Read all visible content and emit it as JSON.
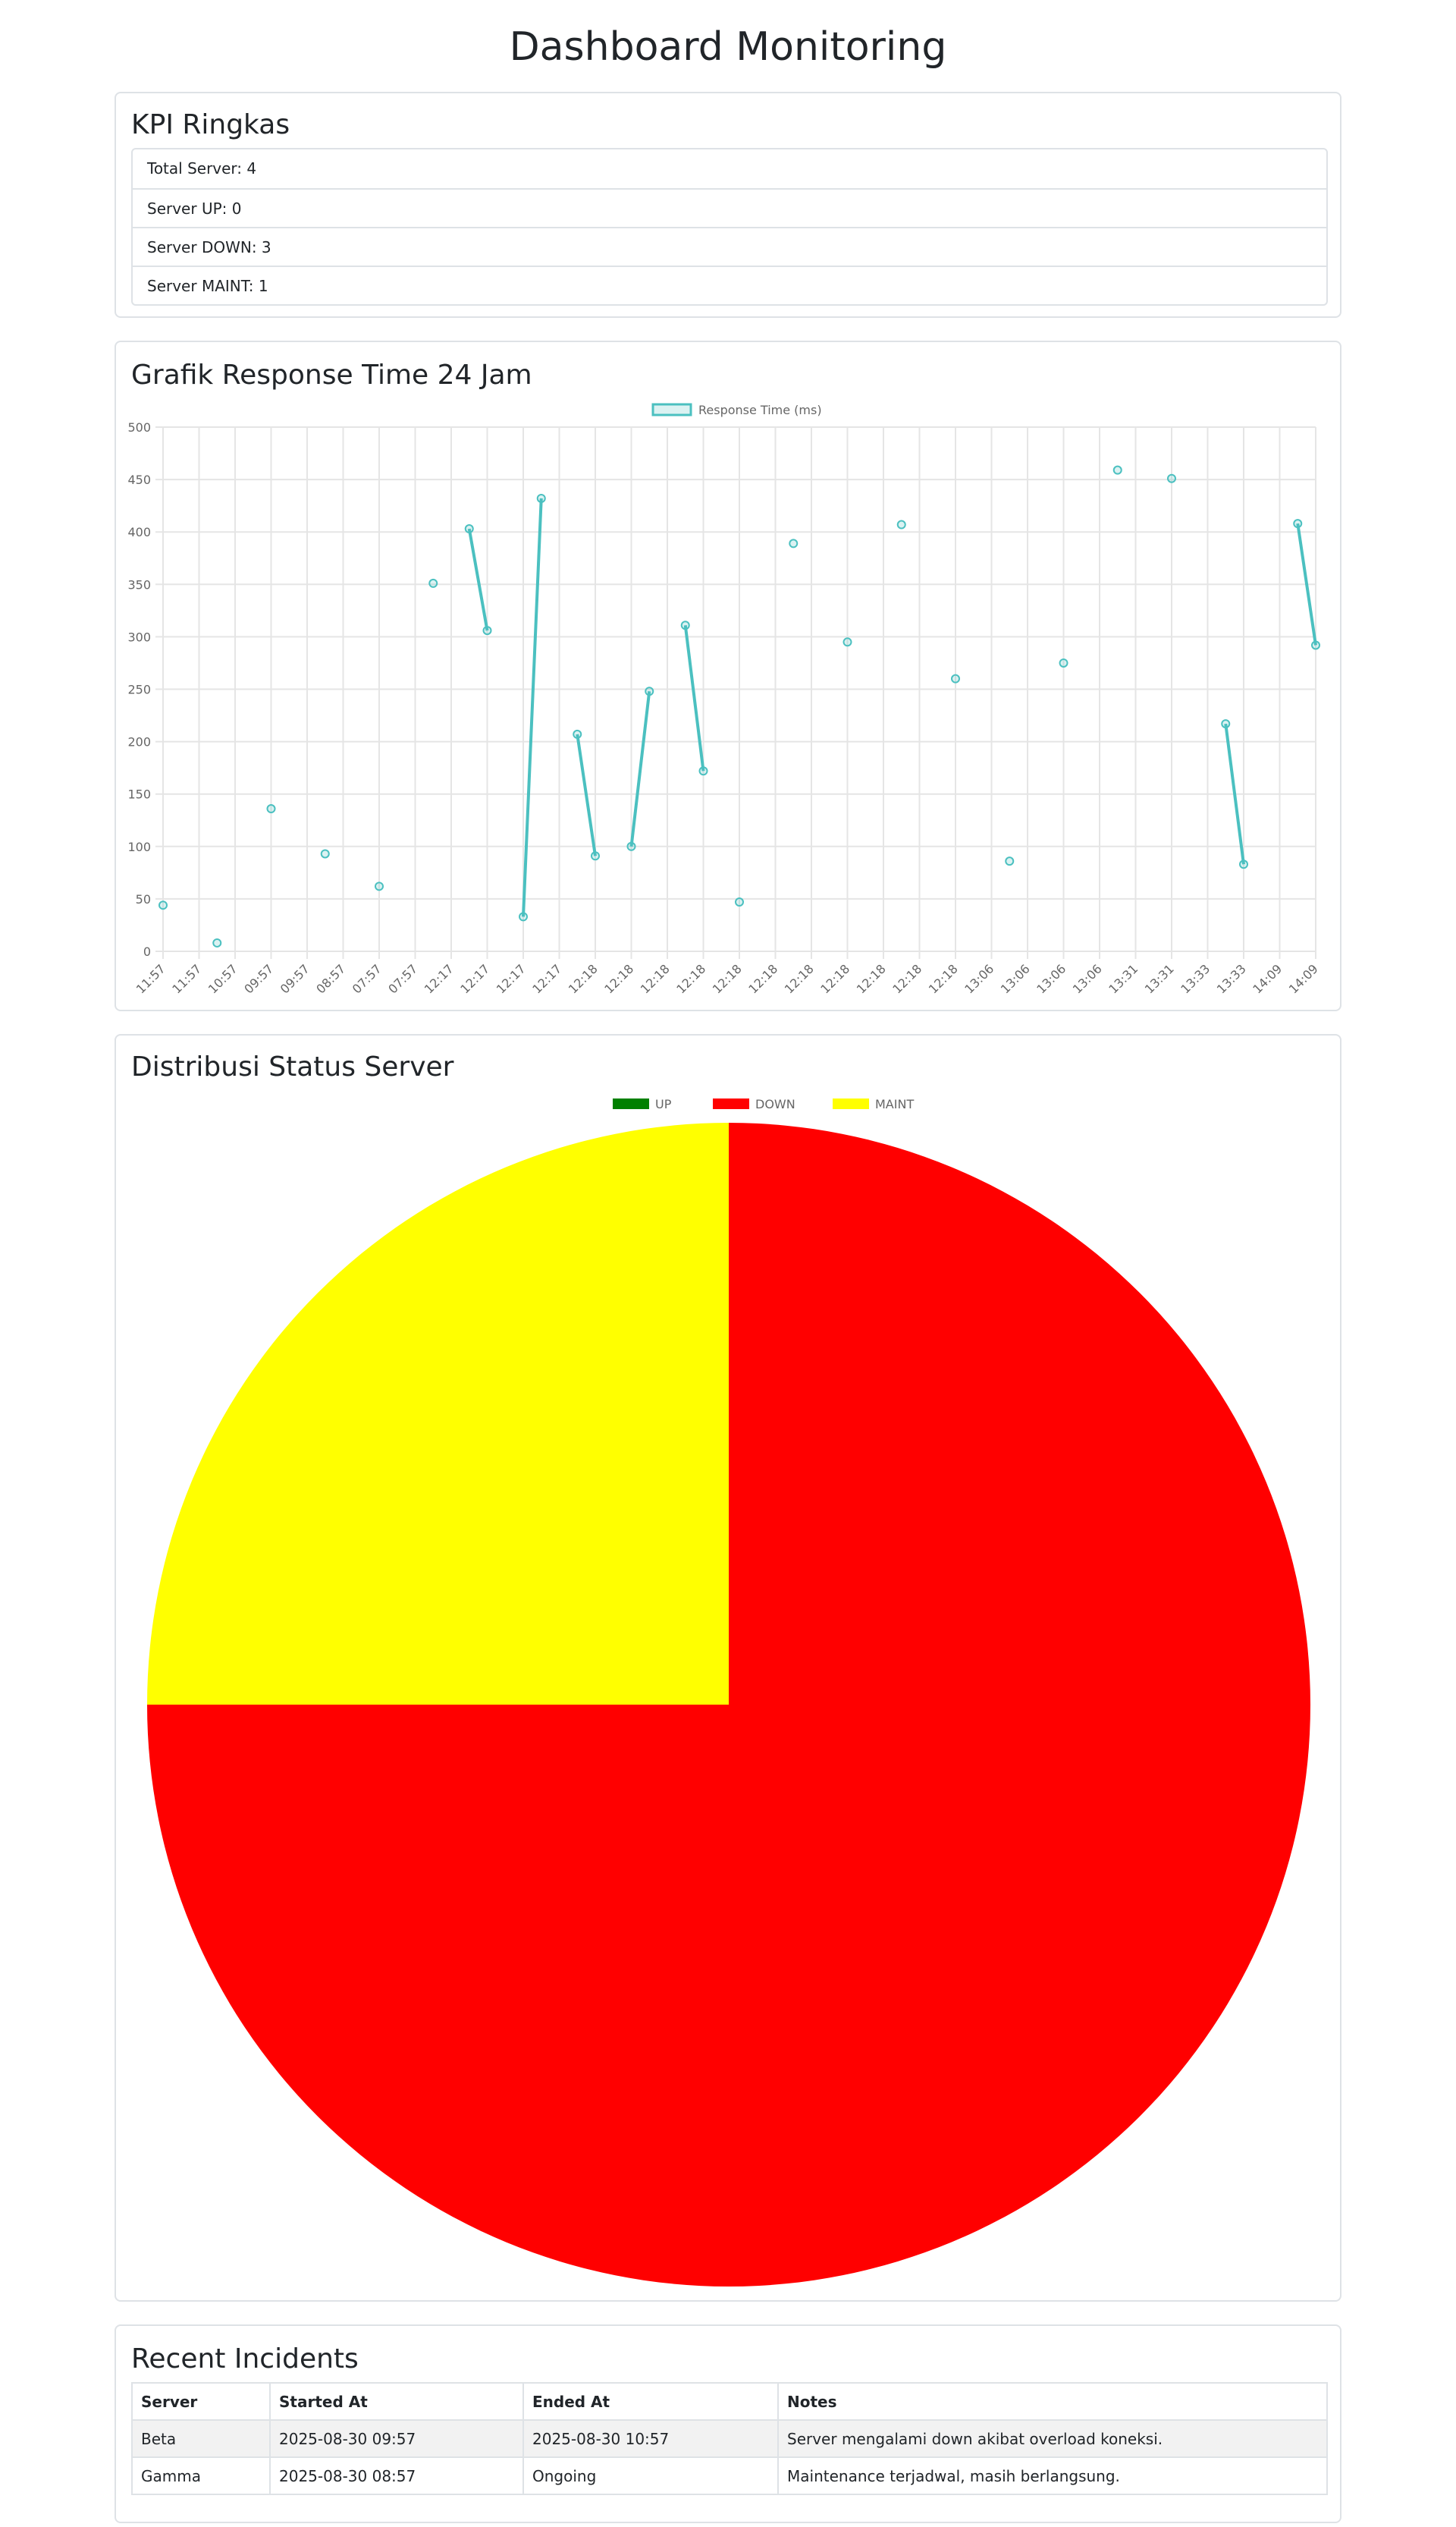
{
  "title": "Dashboard Monitoring",
  "kpi": {
    "title": "KPI Ringkas",
    "items": [
      "Total Server: 4",
      "Server UP: 0",
      "Server DOWN: 3",
      "Server MAINT: 1"
    ]
  },
  "chart_data": [
    {
      "type": "line",
      "title": "Grafik Response Time 24 Jam",
      "categories": [
        "11:57",
        null,
        "11:57",
        null,
        "10:57",
        null,
        "09:57",
        null,
        "09:57",
        null,
        "08:57",
        null,
        "07:57",
        null,
        "07:57",
        null,
        "12:17",
        null,
        "12:17",
        null,
        "12:17",
        null,
        "12:17",
        null,
        "12:18",
        null,
        "12:18",
        null,
        "12:18",
        null,
        "12:18",
        null,
        "12:18",
        null,
        "12:18",
        null,
        "12:18",
        null,
        "12:18",
        null,
        "12:18",
        null,
        "12:18",
        null,
        "12:18",
        null,
        "13:06",
        null,
        "13:06",
        null,
        "13:06",
        null,
        "13:06",
        null,
        "13:31",
        null,
        "13:31",
        null,
        "13:33",
        null,
        "13:33",
        null,
        "14:09",
        null,
        "14:09"
      ],
      "series": [
        {
          "name": "Response Time (ms)",
          "color": "#4bc0c0",
          "values": [
            44,
            null,
            null,
            8,
            null,
            null,
            136,
            null,
            null,
            93,
            null,
            null,
            62,
            null,
            null,
            351,
            null,
            403,
            306,
            null,
            33,
            432,
            null,
            207,
            91,
            null,
            100,
            248,
            null,
            311,
            172,
            null,
            47,
            null,
            null,
            389,
            null,
            null,
            295,
            null,
            null,
            407,
            null,
            null,
            260,
            null,
            null,
            86,
            null,
            null,
            275,
            null,
            null,
            459,
            null,
            null,
            451,
            null,
            null,
            217,
            83,
            null,
            null,
            408,
            292
          ]
        }
      ],
      "ylim": [
        0,
        500
      ],
      "yticks": [
        0,
        50,
        100,
        150,
        200,
        250,
        300,
        350,
        400,
        450,
        500
      ],
      "grid": true,
      "legend": "top"
    },
    {
      "type": "pie",
      "title": "Distribusi Status Server",
      "categories": [
        "UP",
        "DOWN",
        "MAINT"
      ],
      "values": [
        0,
        3,
        1
      ],
      "colors": [
        "#008000",
        "#ff0000",
        "#ffff00"
      ],
      "legend": "top"
    }
  ],
  "incidents": {
    "title": "Recent Incidents",
    "table": {
      "header": [
        "Server",
        "Started At",
        "Ended At",
        "Notes"
      ],
      "rows": [
        [
          "Beta",
          "2025-08-30 09:57",
          "2025-08-30 10:57",
          "Server mengalami down akibat overload koneksi."
        ],
        [
          "Gamma",
          "2025-08-30 08:57",
          "Ongoing",
          "Maintenance terjadwal, masih berlangsung."
        ]
      ]
    }
  }
}
